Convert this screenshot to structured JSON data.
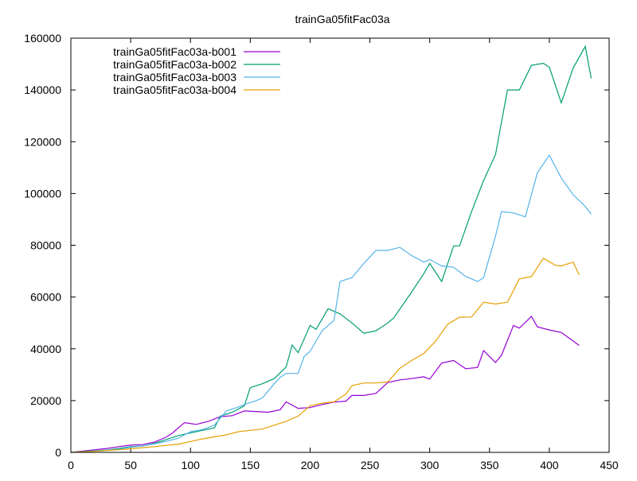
{
  "chart_data": {
    "type": "line",
    "title": "trainGa05fitFac03a",
    "xlabel": "",
    "ylabel": "",
    "xlim": [
      0,
      450
    ],
    "ylim": [
      0,
      160000
    ],
    "xticks": [
      0,
      50,
      100,
      150,
      200,
      250,
      300,
      350,
      400,
      450
    ],
    "yticks": [
      0,
      20000,
      40000,
      60000,
      80000,
      100000,
      120000,
      140000,
      160000
    ],
    "grid": false,
    "legend": "top-left",
    "series": [
      {
        "name": "trainGa05fitFac03a-b001",
        "color": "#9400d3",
        "points": [
          [
            0,
            0
          ],
          [
            10,
            500
          ],
          [
            20,
            1000
          ],
          [
            30,
            1500
          ],
          [
            40,
            2200
          ],
          [
            50,
            2800
          ],
          [
            60,
            3000
          ],
          [
            70,
            4000
          ],
          [
            80,
            6000
          ],
          [
            85,
            7500
          ],
          [
            95,
            11500
          ],
          [
            105,
            10800
          ],
          [
            115,
            12000
          ],
          [
            125,
            13800
          ],
          [
            135,
            14200
          ],
          [
            145,
            16000
          ],
          [
            155,
            15800
          ],
          [
            165,
            15500
          ],
          [
            175,
            16500
          ],
          [
            180,
            19500
          ],
          [
            190,
            17000
          ],
          [
            200,
            17300
          ],
          [
            210,
            18500
          ],
          [
            220,
            19400
          ],
          [
            230,
            19800
          ],
          [
            235,
            22000
          ],
          [
            245,
            22000
          ],
          [
            255,
            22800
          ],
          [
            265,
            27000
          ],
          [
            275,
            28000
          ],
          [
            285,
            28500
          ],
          [
            295,
            29200
          ],
          [
            300,
            28300
          ],
          [
            310,
            34500
          ],
          [
            320,
            35500
          ],
          [
            330,
            32300
          ],
          [
            340,
            32800
          ],
          [
            345,
            39300
          ],
          [
            355,
            34700
          ],
          [
            360,
            37500
          ],
          [
            370,
            49000
          ],
          [
            375,
            48000
          ],
          [
            385,
            52500
          ],
          [
            390,
            48500
          ],
          [
            400,
            47300
          ],
          [
            410,
            46300
          ],
          [
            420,
            43000
          ],
          [
            425,
            41300
          ]
        ]
      },
      {
        "name": "trainGa05fitFac03a-b002",
        "color": "#009e73",
        "points": [
          [
            0,
            0
          ],
          [
            10,
            300
          ],
          [
            20,
            600
          ],
          [
            30,
            900
          ],
          [
            40,
            1500
          ],
          [
            50,
            2200
          ],
          [
            60,
            2500
          ],
          [
            70,
            3500
          ],
          [
            80,
            5000
          ],
          [
            90,
            6500
          ],
          [
            100,
            7500
          ],
          [
            110,
            8500
          ],
          [
            120,
            9500
          ],
          [
            125,
            14000
          ],
          [
            135,
            15500
          ],
          [
            145,
            18000
          ],
          [
            150,
            25000
          ],
          [
            160,
            26500
          ],
          [
            170,
            28500
          ],
          [
            180,
            33000
          ],
          [
            185,
            41500
          ],
          [
            190,
            38500
          ],
          [
            200,
            49000
          ],
          [
            205,
            47500
          ],
          [
            215,
            55500
          ],
          [
            225,
            53500
          ],
          [
            235,
            50000
          ],
          [
            245,
            46000
          ],
          [
            255,
            47000
          ],
          [
            265,
            50000
          ],
          [
            270,
            52000
          ],
          [
            285,
            62000
          ],
          [
            295,
            69000
          ],
          [
            300,
            73000
          ],
          [
            310,
            66000
          ],
          [
            320,
            79800
          ],
          [
            325,
            79800
          ],
          [
            335,
            93000
          ],
          [
            345,
            105000
          ],
          [
            355,
            115000
          ],
          [
            365,
            140000
          ],
          [
            375,
            140000
          ],
          [
            385,
            149500
          ],
          [
            395,
            150300
          ],
          [
            400,
            148800
          ],
          [
            410,
            135000
          ],
          [
            420,
            148500
          ],
          [
            430,
            156800
          ],
          [
            435,
            144500
          ]
        ]
      },
      {
        "name": "trainGa05fitFac03a-b003",
        "color": "#56b4e9",
        "points": [
          [
            0,
            0
          ],
          [
            10,
            200
          ],
          [
            20,
            500
          ],
          [
            30,
            800
          ],
          [
            40,
            1200
          ],
          [
            50,
            2000
          ],
          [
            60,
            2500
          ],
          [
            70,
            3300
          ],
          [
            80,
            4300
          ],
          [
            90,
            5500
          ],
          [
            100,
            8000
          ],
          [
            110,
            8800
          ],
          [
            120,
            10500
          ],
          [
            130,
            16000
          ],
          [
            140,
            17500
          ],
          [
            145,
            18500
          ],
          [
            155,
            20000
          ],
          [
            160,
            21000
          ],
          [
            170,
            26500
          ],
          [
            175,
            29000
          ],
          [
            180,
            30500
          ],
          [
            190,
            30500
          ],
          [
            195,
            37000
          ],
          [
            200,
            39000
          ],
          [
            210,
            47000
          ],
          [
            220,
            51000
          ],
          [
            225,
            66000
          ],
          [
            235,
            67500
          ],
          [
            245,
            73000
          ],
          [
            255,
            78000
          ],
          [
            265,
            78000
          ],
          [
            275,
            79200
          ],
          [
            285,
            76000
          ],
          [
            295,
            73500
          ],
          [
            300,
            74500
          ],
          [
            310,
            72000
          ],
          [
            320,
            71500
          ],
          [
            330,
            68000
          ],
          [
            340,
            66000
          ],
          [
            345,
            67500
          ],
          [
            355,
            83500
          ],
          [
            360,
            93000
          ],
          [
            370,
            92500
          ],
          [
            380,
            91000
          ],
          [
            390,
            108000
          ],
          [
            400,
            114800
          ],
          [
            410,
            106000
          ],
          [
            420,
            99500
          ],
          [
            430,
            95000
          ],
          [
            435,
            92000
          ]
        ]
      },
      {
        "name": "trainGa05fitFac03a-b004",
        "color": "#e69f00",
        "points": [
          [
            0,
            0
          ],
          [
            10,
            200
          ],
          [
            20,
            400
          ],
          [
            30,
            700
          ],
          [
            40,
            1000
          ],
          [
            50,
            1400
          ],
          [
            60,
            1800
          ],
          [
            70,
            2200
          ],
          [
            80,
            2700
          ],
          [
            90,
            3200
          ],
          [
            100,
            4200
          ],
          [
            110,
            5200
          ],
          [
            120,
            6000
          ],
          [
            130,
            6800
          ],
          [
            140,
            8000
          ],
          [
            150,
            8500
          ],
          [
            160,
            9000
          ],
          [
            170,
            10500
          ],
          [
            180,
            12000
          ],
          [
            190,
            14000
          ],
          [
            200,
            18000
          ],
          [
            210,
            19000
          ],
          [
            220,
            19500
          ],
          [
            230,
            22500
          ],
          [
            235,
            25800
          ],
          [
            245,
            26800
          ],
          [
            255,
            26800
          ],
          [
            265,
            27200
          ],
          [
            275,
            32500
          ],
          [
            285,
            35500
          ],
          [
            295,
            38200
          ],
          [
            305,
            43000
          ],
          [
            315,
            49500
          ],
          [
            325,
            52200
          ],
          [
            335,
            52300
          ],
          [
            345,
            58000
          ],
          [
            355,
            57300
          ],
          [
            365,
            58000
          ],
          [
            375,
            67000
          ],
          [
            385,
            67900
          ],
          [
            395,
            75000
          ],
          [
            405,
            72300
          ],
          [
            410,
            72000
          ],
          [
            420,
            73500
          ],
          [
            425,
            68500
          ]
        ]
      }
    ]
  }
}
